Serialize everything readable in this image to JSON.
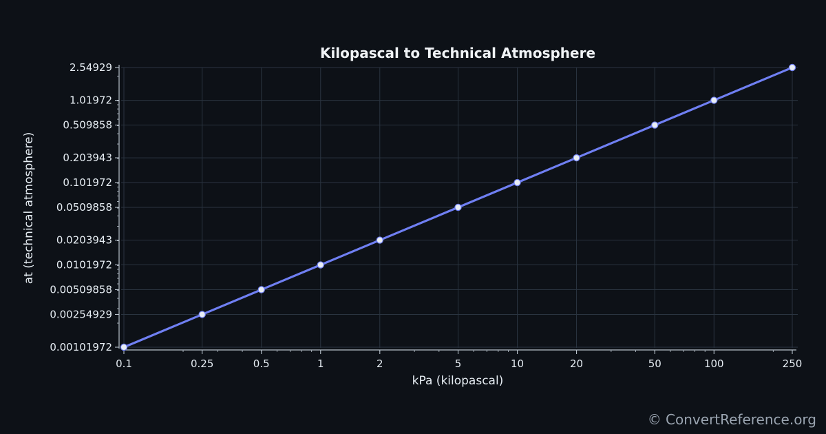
{
  "chart_data": {
    "type": "line",
    "title": "Kilopascal to Technical Atmosphere",
    "xlabel": "kPa (kilopascal)",
    "ylabel": "at (technical atmosphere)",
    "x_scale": "log",
    "y_scale": "log",
    "grid": true,
    "xlim": [
      0.1,
      250
    ],
    "ylim": [
      0.00101972,
      2.54929
    ],
    "x_tick_labels": [
      "0.1",
      "0.25",
      "0.5",
      "1",
      "2",
      "5",
      "10",
      "20",
      "50",
      "100",
      "250"
    ],
    "y_tick_labels": [
      "0.00101972",
      "0.00254929",
      "0.00509858",
      "0.0101972",
      "0.0203943",
      "0.0509858",
      "0.101972",
      "0.203943",
      "0.509858",
      "1.01972",
      "2.54929"
    ],
    "series": [
      {
        "color": "#6f7ff2",
        "marker_color": "#e8edf5",
        "x": [
          0.1,
          0.25,
          0.5,
          1,
          2,
          5,
          10,
          20,
          50,
          100,
          250
        ],
        "y": [
          0.00101972,
          0.00254929,
          0.00509858,
          0.0101972,
          0.0203943,
          0.0509858,
          0.101972,
          0.203943,
          0.509858,
          1.01972,
          2.54929
        ]
      }
    ]
  },
  "watermark": "© ConvertReference.org",
  "colors": {
    "background": "#0d1117",
    "line": "#6f7ff2",
    "marker": "#e8edf5",
    "grid": "#2a3440",
    "text": "#e6edf3"
  }
}
